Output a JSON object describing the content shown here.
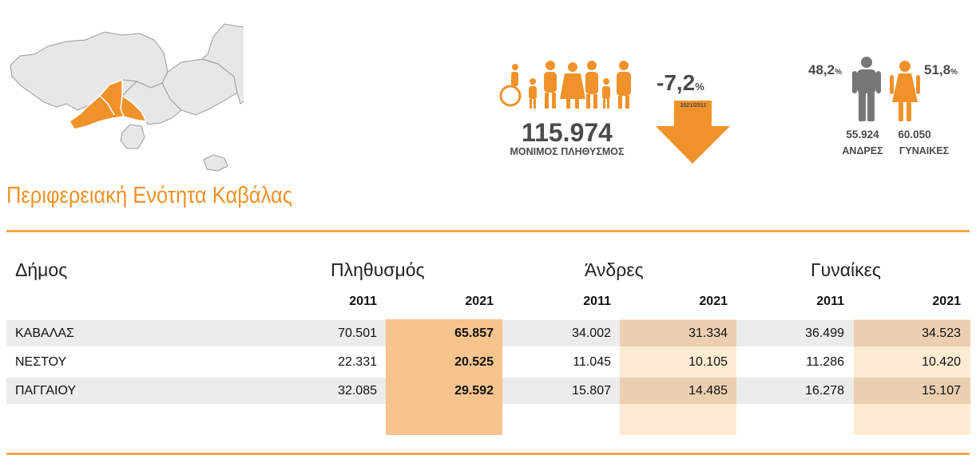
{
  "header": {
    "total_population": "115.974",
    "total_label": "ΜΟΝΙΜΟΣ ΠΛΗΘΥΣΜΟΣ",
    "change_value": "-7,2",
    "change_unit": "%",
    "change_period": "2021/2011",
    "men_pct": "48,2",
    "women_pct": "51,8",
    "pct_unit": "%",
    "men_count": "55.924",
    "women_count": "60.050",
    "men_label": "ΑΝΔΡΕΣ",
    "women_label": "ΓΥΝΑΙΚΕΣ"
  },
  "title": "Περιφερειακή Ενότητα Καβάλας",
  "table": {
    "headers": {
      "municipality": "Δήμος",
      "population": "Πληθυσμός",
      "men": "Άνδρες",
      "women": "Γυναίκες"
    },
    "years": [
      "2011",
      "2021",
      "2011",
      "2021",
      "2011",
      "2021"
    ],
    "rows": [
      {
        "name": "ΚΑΒΑΛΑΣ",
        "values": [
          "70.501",
          "65.857",
          "34.002",
          "31.334",
          "36.499",
          "34.523"
        ]
      },
      {
        "name": "ΝΕΣΤΟΥ",
        "values": [
          "22.331",
          "20.525",
          "11.045",
          "10.105",
          "11.286",
          "10.420"
        ]
      },
      {
        "name": "ΠΑΓΓΑΙΟΥ",
        "values": [
          "32.085",
          "29.592",
          "15.807",
          "14.485",
          "16.278",
          "15.107"
        ]
      }
    ]
  },
  "colors": {
    "accent": "#f0922a",
    "highlight_strong": "#f7c48e",
    "highlight_mid": "#eccfb1",
    "highlight_light": "#fdebd3",
    "band": "#ececec",
    "icon_gray": "#777777"
  }
}
